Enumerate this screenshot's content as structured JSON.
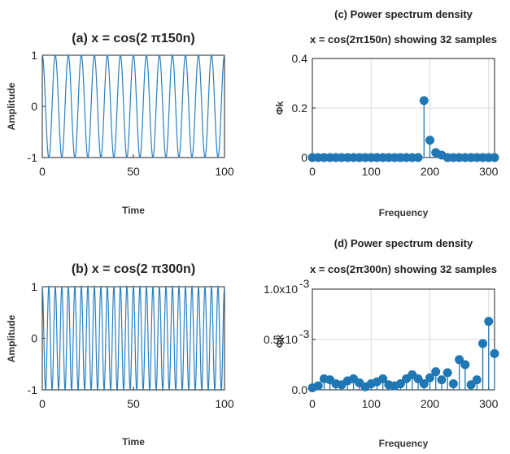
{
  "chart_data": [
    {
      "type": "line",
      "title": "(a)  x = cos(2 π150n)",
      "xlabel": "Time",
      "ylabel": "Amplitude",
      "xlim": [
        0,
        100
      ],
      "ylim": [
        -1,
        1
      ],
      "xticks": [
        "0",
        "50",
        "100"
      ],
      "yticks": [
        "-1",
        "0",
        "1"
      ],
      "series": [
        {
          "function": "cos(2π·150n)",
          "x_range": [
            0,
            100
          ],
          "cycles": 14,
          "color": "#2a7fc0"
        }
      ]
    },
    {
      "type": "line",
      "title": "(b)  x = cos(2 π300n)",
      "xlabel": "Time",
      "ylabel": "Amplitude",
      "xlim": [
        0,
        100
      ],
      "ylim": [
        -1,
        1
      ],
      "xticks": [
        "0",
        "50",
        "100"
      ],
      "yticks": [
        "-1",
        "0",
        "1"
      ],
      "series": [
        {
          "function": "cos(2π·300n)",
          "x_range": [
            0,
            100
          ],
          "cycles": 28,
          "color": "#2a7fc0"
        }
      ]
    },
    {
      "type": "stem",
      "title": "(c)  Power spectrum density",
      "subtitle": "x = cos(2π150n) showing 32 samples",
      "xlabel": "Frequency",
      "ylabel": "Φk",
      "xlim": [
        0,
        310
      ],
      "ylim": [
        0,
        0.4
      ],
      "xticks": [
        "0",
        "100",
        "200",
        "300"
      ],
      "yticks": [
        "0",
        "0.2",
        "0.4"
      ],
      "grid": true,
      "series": [
        {
          "color": "#1f77b4",
          "x": [
            0,
            10,
            20,
            30,
            40,
            50,
            60,
            70,
            80,
            90,
            100,
            110,
            120,
            130,
            140,
            150,
            160,
            170,
            180,
            190,
            200,
            210,
            220,
            230,
            240,
            250,
            260,
            270,
            280,
            290,
            300,
            310
          ],
          "y": [
            0,
            0,
            0,
            0,
            0,
            0,
            0,
            0,
            0,
            0,
            0,
            0,
            0,
            0,
            0,
            0,
            0,
            0,
            0,
            0.23,
            0.07,
            0.02,
            0.01,
            0,
            0,
            0,
            0,
            0,
            0,
            0,
            0,
            0
          ]
        }
      ]
    },
    {
      "type": "stem",
      "title": "(d)  Power spectrum density",
      "subtitle": "x = cos(2π300n) showing 32 samples",
      "xlabel": "Frequency",
      "ylabel": "Φk",
      "xlim": [
        0,
        310
      ],
      "ylim": [
        0,
        0.001
      ],
      "xticks": [
        "0",
        "100",
        "200",
        "300"
      ],
      "yticks": [
        "0.0",
        "0.5x10",
        "1.0x10"
      ],
      "ytick_exponent": "-3",
      "grid": true,
      "series": [
        {
          "color": "#1f77b4",
          "x": [
            0,
            10,
            20,
            30,
            40,
            50,
            60,
            70,
            80,
            90,
            100,
            110,
            120,
            130,
            140,
            150,
            160,
            170,
            180,
            190,
            200,
            210,
            220,
            230,
            240,
            250,
            260,
            270,
            280,
            290,
            300,
            310
          ],
          "y": [
            2e-05,
            4e-05,
            0.00011,
            0.0001,
            6e-05,
            5e-05,
            9e-05,
            0.00011,
            7e-05,
            3e-05,
            6e-05,
            8e-05,
            0.00011,
            5e-05,
            4e-05,
            6e-05,
            0.00011,
            0.00015,
            0.00011,
            6e-05,
            0.00012,
            0.00018,
            0.0001,
            0.00017,
            6e-05,
            0.0003,
            0.00025,
            5e-05,
            0.0001,
            0.00046,
            0.00068,
            0.00036
          ]
        }
      ]
    }
  ]
}
